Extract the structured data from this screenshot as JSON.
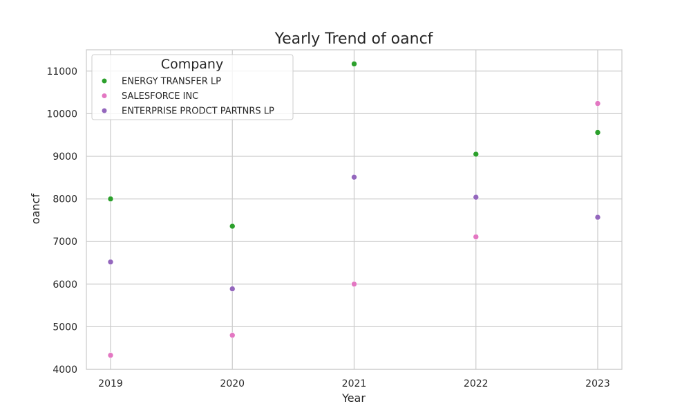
{
  "chart_data": {
    "type": "scatter",
    "title": "Yearly Trend of oancf",
    "xlabel": "Year",
    "ylabel": "oancf",
    "categories": [
      "2019",
      "2020",
      "2021",
      "2022",
      "2023"
    ],
    "y_ticks": [
      "4000",
      "5000",
      "6000",
      "7000",
      "8000",
      "9000",
      "10000",
      "11000"
    ],
    "ylim": [
      4000,
      11500
    ],
    "grid": true,
    "legend": {
      "title": "Company",
      "position": "top-left"
    },
    "series": [
      {
        "name": "ENERGY TRANSFER LP",
        "color": "#2ca02c",
        "values": [
          8000,
          7360,
          11170,
          9050,
          9560
        ]
      },
      {
        "name": "SALESFORCE INC",
        "color": "#e377c2",
        "values": [
          4330,
          4800,
          6000,
          7110,
          10240
        ]
      },
      {
        "name": "ENTERPRISE PRODCT PARTNRS LP",
        "color": "#9467bd",
        "values": [
          6520,
          5890,
          8510,
          8040,
          7570
        ]
      }
    ]
  }
}
